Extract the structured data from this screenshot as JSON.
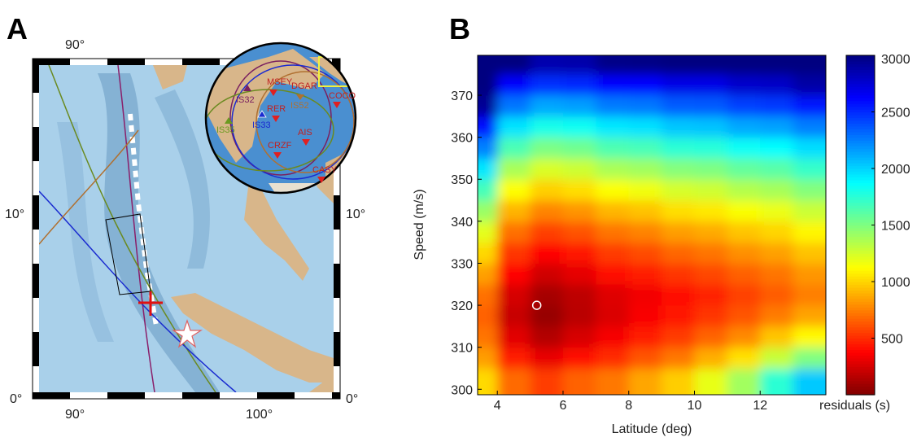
{
  "panel_a": {
    "label": "A",
    "top_ticks": [
      "90°"
    ],
    "bottom_ticks": [
      "90°",
      "100°"
    ],
    "left_ticks": [
      "10°",
      "0°"
    ],
    "right_ticks": [
      "10°",
      "0°"
    ],
    "stations": [
      "IS32",
      "MSEY",
      "DGAR",
      "IS52",
      "RER",
      "COCO",
      "IS35",
      "IS33",
      "AIS",
      "CRZF",
      "CASY"
    ]
  },
  "chart_data": {
    "type": "heatmap",
    "label": "B",
    "xlabel": "Latitude (deg)",
    "ylabel": "Speed (m/s)",
    "colorbar_label": "residuals (s)",
    "colormap": "jet_reversed",
    "x": [
      3.5,
      4.5,
      5.5,
      6.5,
      7.5,
      8.5,
      9.5,
      10.5,
      11.5,
      12.5,
      13.5
    ],
    "y": [
      302.5,
      307.5,
      312.5,
      317.5,
      322.5,
      327.5,
      332.5,
      337.5,
      342.5,
      347.5,
      352.5,
      357.5,
      362.5,
      367.5,
      372.5,
      377.5
    ],
    "z": [
      [
        1017,
        690,
        550,
        663,
        729,
        862,
        980,
        1194,
        1400,
        1749,
        2034
      ],
      [
        837,
        450,
        310,
        423,
        505,
        624,
        725,
        888,
        1040,
        1293,
        1502
      ],
      [
        717,
        290,
        150,
        258,
        351,
        456,
        545,
        667,
        780,
        957,
        1110
      ],
      [
        657,
        210,
        70,
        168,
        267,
        358,
        440,
        531,
        621,
        741,
        858
      ],
      [
        708,
        253,
        113,
        181,
        281,
        340,
        420,
        480,
        560,
        645,
        746
      ],
      [
        846,
        378,
        238,
        301,
        401,
        455,
        535,
        580,
        660,
        716,
        816
      ],
      [
        1011,
        528,
        388,
        446,
        546,
        595,
        675,
        715,
        795,
        846,
        946
      ],
      [
        1203,
        703,
        563,
        616,
        716,
        760,
        840,
        875,
        955,
        1001,
        1101
      ],
      [
        1423,
        903,
        763,
        811,
        911,
        950,
        1030,
        1060,
        1140,
        1181,
        1281
      ],
      [
        1671,
        1128,
        988,
        1031,
        1131,
        1165,
        1245,
        1270,
        1350,
        1386,
        1486
      ],
      [
        1946,
        1378,
        1238,
        1276,
        1376,
        1405,
        1485,
        1505,
        1585,
        1616,
        1716
      ],
      [
        2248,
        1653,
        1513,
        1546,
        1646,
        1670,
        1750,
        1765,
        1845,
        1871,
        1971
      ],
      [
        2578,
        1953,
        1813,
        1841,
        1941,
        1960,
        2040,
        2050,
        2130,
        2151,
        2251
      ],
      [
        2936,
        2278,
        2138,
        2161,
        2261,
        2275,
        2355,
        2360,
        2440,
        2456,
        2556
      ],
      [
        3000,
        2628,
        2488,
        2506,
        2606,
        2615,
        2695,
        2695,
        2775,
        2786,
        2886
      ],
      [
        3000,
        3000,
        2863,
        2876,
        2976,
        2980,
        3000,
        3000,
        3000,
        3000,
        3000
      ]
    ],
    "xlim": [
      3.4,
      14
    ],
    "ylim": [
      298.7,
      379.5
    ],
    "xticks": [
      4,
      6,
      8,
      10,
      12
    ],
    "yticks": [
      300,
      310,
      320,
      330,
      340,
      350,
      360,
      370
    ],
    "clim": [
      0,
      3000
    ],
    "cticks": [
      500,
      1000,
      1500,
      2000,
      2500,
      3000
    ],
    "marker": {
      "x": 5.2,
      "y": 320
    }
  }
}
